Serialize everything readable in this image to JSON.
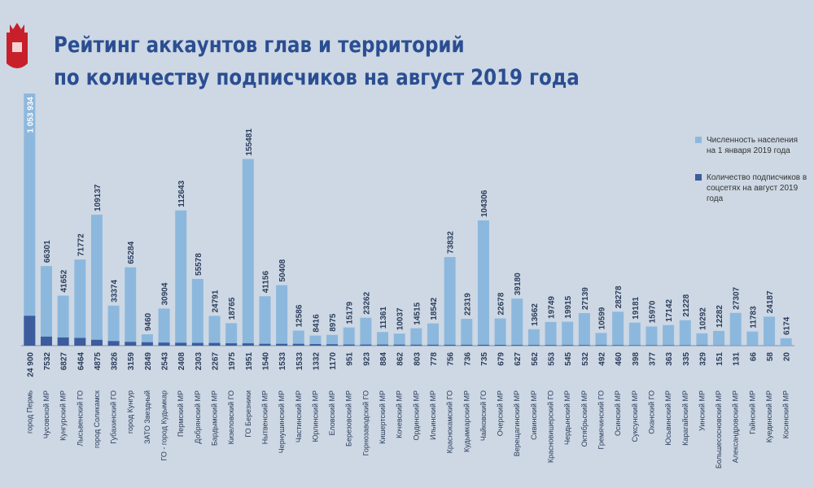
{
  "chart_data": {
    "type": "bar",
    "title": "Рейтинг аккаунтов глав и территорий\nпо количеству подписчиков на август 2019 года",
    "categories": [
      "город Пермь",
      "Чусовской МР",
      "Кунгурский МР",
      "Лысьвенский ГО",
      "город Соликамск",
      "Губахинский ГО",
      "город Кунгур",
      "ЗАТО Звездный",
      "ГО - город Кудымкар",
      "Пермский МР",
      "Добрянский МР",
      "Бардымский МР",
      "Кизеловский ГО",
      "ГО Березники",
      "Нытвенский МР",
      "Чернушинский МР",
      "Частинский МР",
      "Юрлинский МР",
      "Еловский МР",
      "Березовский МР",
      "Горнозаводский ГО",
      "Кишертский МР",
      "Кочевский МР",
      "Ординский МР",
      "Ильинский МР",
      "Краснокамский ГО",
      "Кудымкарский МР",
      "Чайковский ГО",
      "Очерский МР",
      "Верещагинский МР",
      "Сивинский МР",
      "Красновишерский ГО",
      "Чердынский МР",
      "Октябрьский МР",
      "Гремячинский ГО",
      "Осинский МР",
      "Суксунский МР",
      "Оханский ГО",
      "Юсьвинский МР",
      "Карагайский МР",
      "Уинский МР",
      "Большесосновский МР",
      "Александровский МР",
      "Гайнский МР",
      "Куединский МР",
      "Косинский МР"
    ],
    "series": [
      {
        "name": "Численность населения на 1 января 2019 года",
        "color": "#8db8de",
        "values": [
          1053934,
          66301,
          41652,
          71772,
          109137,
          33374,
          65284,
          9460,
          30904,
          112643,
          55578,
          24791,
          18765,
          155481,
          41156,
          50408,
          12586,
          8416,
          8975,
          15179,
          23262,
          11361,
          10037,
          14515,
          18542,
          73832,
          22319,
          104306,
          22678,
          39180,
          13662,
          19749,
          19915,
          27139,
          10599,
          28278,
          19181,
          15970,
          17142,
          21228,
          10292,
          12282,
          27307,
          11783,
          24187,
          6174
        ],
        "value_labels": [
          "1 053 934",
          "66301",
          "41652",
          "71772",
          "109137",
          "33374",
          "65284",
          "9460",
          "30904",
          "112643",
          "55578",
          "24791",
          "18765",
          "155481",
          "41156",
          "50408",
          "12586",
          "8416",
          "8975",
          "15179",
          "23262",
          "11361",
          "10037",
          "14515",
          "18542",
          "73832",
          "22319",
          "104306",
          "22678",
          "39180",
          "13662",
          "19749",
          "19915",
          "27139",
          "10599",
          "28278",
          "19181",
          "15970",
          "17142",
          "21228",
          "10292",
          "12282",
          "27307",
          "11783",
          "24187",
          "6174"
        ]
      },
      {
        "name": "Количество подписчиков в соцсетях на август 2019 года",
        "color": "#3d5c9e",
        "values": [
          24900,
          7532,
          6827,
          6464,
          4875,
          3826,
          3159,
          2849,
          2543,
          2408,
          2303,
          2267,
          1975,
          1951,
          1540,
          1533,
          1533,
          1332,
          1170,
          951,
          923,
          884,
          862,
          803,
          778,
          756,
          736,
          735,
          679,
          627,
          562,
          553,
          545,
          532,
          492,
          460,
          398,
          377,
          363,
          335,
          329,
          151,
          131,
          66,
          58,
          20
        ],
        "value_labels": [
          "24 900",
          "7532",
          "6827",
          "6464",
          "4875",
          "3826",
          "3159",
          "2849",
          "2543",
          "2408",
          "2303",
          "2267",
          "1975",
          "1951",
          "1540",
          "1533",
          "1533",
          "1332",
          "1170",
          "951",
          "923",
          "884",
          "862",
          "803",
          "778",
          "756",
          "736",
          "735",
          "679",
          "627",
          "562",
          "553",
          "545",
          "532",
          "492",
          "460",
          "398",
          "377",
          "363",
          "335",
          "329",
          "151",
          "131",
          "66",
          "58",
          "20"
        ]
      }
    ],
    "ylim": [
      0,
      210000
    ]
  }
}
